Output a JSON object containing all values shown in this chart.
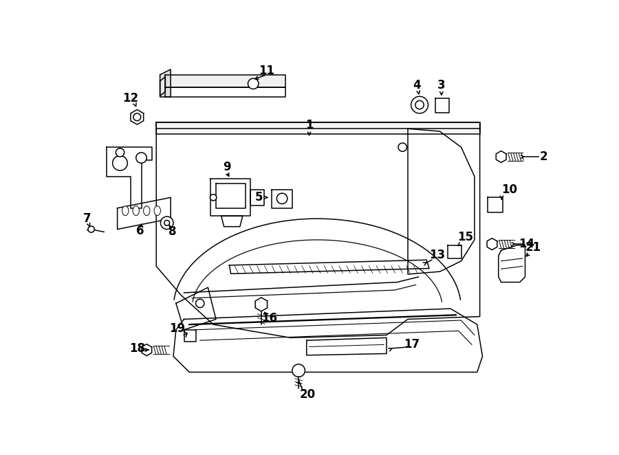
{
  "bg_color": "#ffffff",
  "line_color": "#000000",
  "lw": 1.1,
  "figsize": [
    9.0,
    6.62
  ],
  "dpi": 100
}
